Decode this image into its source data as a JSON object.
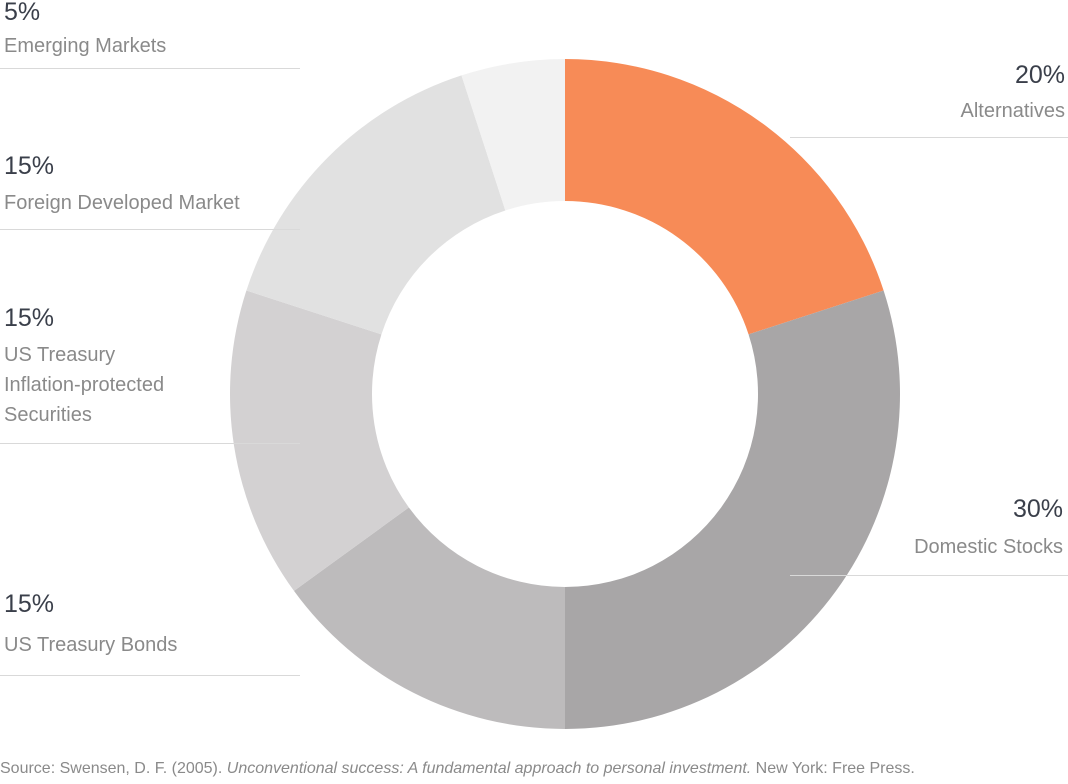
{
  "chart_data": {
    "type": "pie",
    "donut": true,
    "slices": [
      {
        "label": "Alternatives",
        "percent_label": "20%",
        "value": 20,
        "color": "#f78b57"
      },
      {
        "label": "Domestic Stocks",
        "percent_label": "30%",
        "value": 30,
        "color": "#a8a6a7"
      },
      {
        "label": "US Treasury Bonds",
        "percent_label": "15%",
        "value": 15,
        "color": "#bdbbbc"
      },
      {
        "label": "US Treasury Inflation-protected Securities",
        "label_lines": [
          "US Treasury",
          "Inflation-protected",
          "Securities"
        ],
        "percent_label": "15%",
        "value": 15,
        "color": "#d3d1d2"
      },
      {
        "label": "Foreign Developed Market",
        "percent_label": "15%",
        "value": 15,
        "color": "#e1e1e1"
      },
      {
        "label": "Emerging Markets",
        "percent_label": "5%",
        "value": 5,
        "color": "#f2f2f2"
      }
    ],
    "start": "12 o'clock",
    "direction": "clockwise"
  },
  "source": {
    "prefix": "Source: Swensen, D. F. (2005). ",
    "title": "Unconventional success: A fundamental approach to personal investment.",
    "suffix": " New York: Free Press."
  }
}
